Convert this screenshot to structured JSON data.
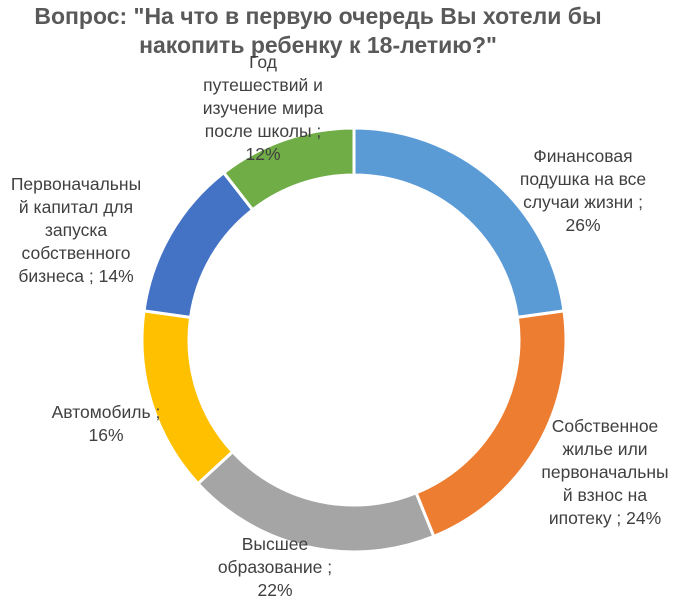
{
  "chart_data": {
    "type": "pie",
    "title_lines": [
      "Вопрос: \"На что в первую очередь Вы хотели бы",
      "накопить ребенку к 18-летию?\""
    ],
    "slices": [
      {
        "label_lines": [
          "Финансовая",
          "подушка на все",
          "случаи жизни ;",
          "26%"
        ],
        "value": 26,
        "color": "#5b9bd5"
      },
      {
        "label_lines": [
          "Собственное",
          "жилье или",
          "первоначальны",
          "й взнос на",
          "ипотеку ; 24%"
        ],
        "value": 24,
        "color": "#ed7d31"
      },
      {
        "label_lines": [
          "Высшее",
          "образование ;",
          "22%"
        ],
        "value": 22,
        "color": "#a5a5a5"
      },
      {
        "label_lines": [
          "Автомобиль ;",
          "16%"
        ],
        "value": 16,
        "color": "#ffc000"
      },
      {
        "label_lines": [
          "Первоначальны",
          "й капитал для",
          "запуска",
          "собственного",
          "бизнеса ; 14%"
        ],
        "value": 14,
        "color": "#4472c4"
      },
      {
        "label_lines": [
          "Год",
          "путешествий и",
          "изучение мира",
          "после школы ;",
          "12%"
        ],
        "value": 12,
        "color": "#70ad47"
      }
    ],
    "legend": "none"
  }
}
